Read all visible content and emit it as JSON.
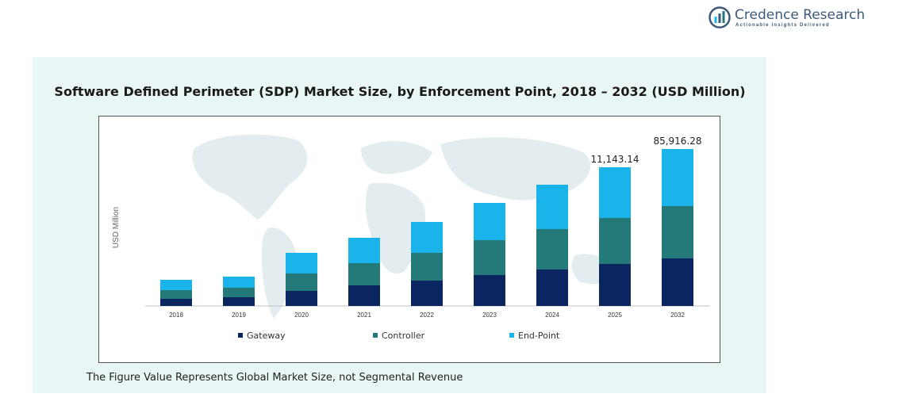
{
  "brand": {
    "name": "Credence Research",
    "tagline": "Actionable Insights Delivered",
    "color": "#3e5a78"
  },
  "footnote": "The Figure Value Represents Global Market Size, not Segmental Revenue",
  "chart_data": {
    "type": "bar",
    "stacked": true,
    "title": "Software Defined Perimeter (SDP) Market Size, by Enforcement Point, 2018 – 2032 (USD Million)",
    "xlabel": "",
    "ylabel": "USD Million",
    "categories": [
      "2018",
      "2019",
      "2020",
      "2021",
      "2022",
      "2023",
      "2024",
      "2025",
      "2032"
    ],
    "series": [
      {
        "name": "Gateway",
        "color": "#0b2560",
        "values": [
          9,
          11,
          19,
          26,
          32,
          39,
          46,
          53,
          60
        ]
      },
      {
        "name": "Controller",
        "color": "#237a78",
        "values": [
          11,
          12,
          22,
          28,
          35,
          44,
          51,
          58,
          66
        ]
      },
      {
        "name": "End-Point",
        "color": "#1bb4ea",
        "values": [
          13,
          14,
          26,
          32,
          39,
          47,
          56,
          64,
          72
        ]
      }
    ],
    "data_labels": [
      {
        "category": "2025",
        "text": "11,143.14"
      },
      {
        "category": "2032",
        "text": "85,916.28"
      }
    ],
    "ylim": [
      0,
      205
    ],
    "grid": false,
    "legend": "bottom"
  }
}
